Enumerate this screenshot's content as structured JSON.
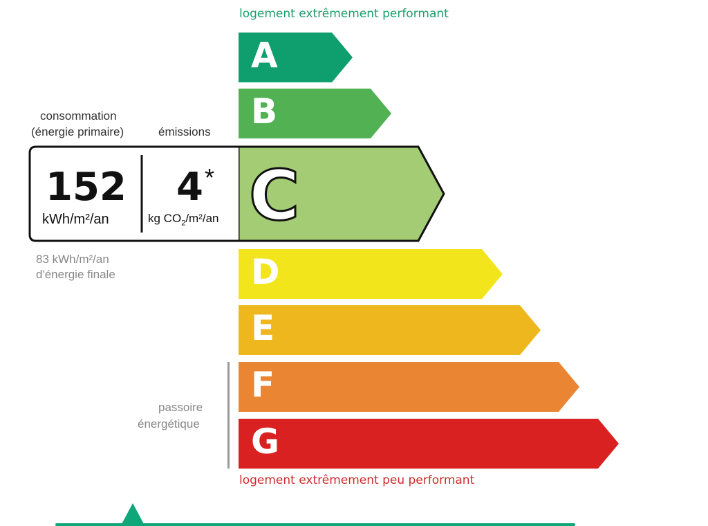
{
  "top_caption": "logement extrêmement performant",
  "bottom_caption": "logement extrêmement peu performant",
  "classes": [
    {
      "letter": "A",
      "color": "#0f9e6e"
    },
    {
      "letter": "B",
      "color": "#52b153"
    },
    {
      "letter": "C",
      "color": "#a3cc74"
    },
    {
      "letter": "D",
      "color": "#f2e51c"
    },
    {
      "letter": "E",
      "color": "#efb71e"
    },
    {
      "letter": "F",
      "color": "#ea8534"
    },
    {
      "letter": "G",
      "color": "#d92121"
    }
  ],
  "current_class": "C",
  "consumption": {
    "label_line1": "consommation",
    "label_line2": "(énergie primaire)",
    "value": "152",
    "unit": "kWh/m²/an"
  },
  "emissions": {
    "label": "émissions",
    "value": "4",
    "asterisk": "*",
    "unit_prefix": "kg CO",
    "unit_sub": "2",
    "unit_suffix": "/m²/an"
  },
  "final_energy": {
    "line1": "83 kWh/m²/an",
    "line2": "d'énergie finale"
  },
  "passoire": {
    "line1": "passoire",
    "line2": "énergétique"
  },
  "accent_color": "#0fa77a"
}
